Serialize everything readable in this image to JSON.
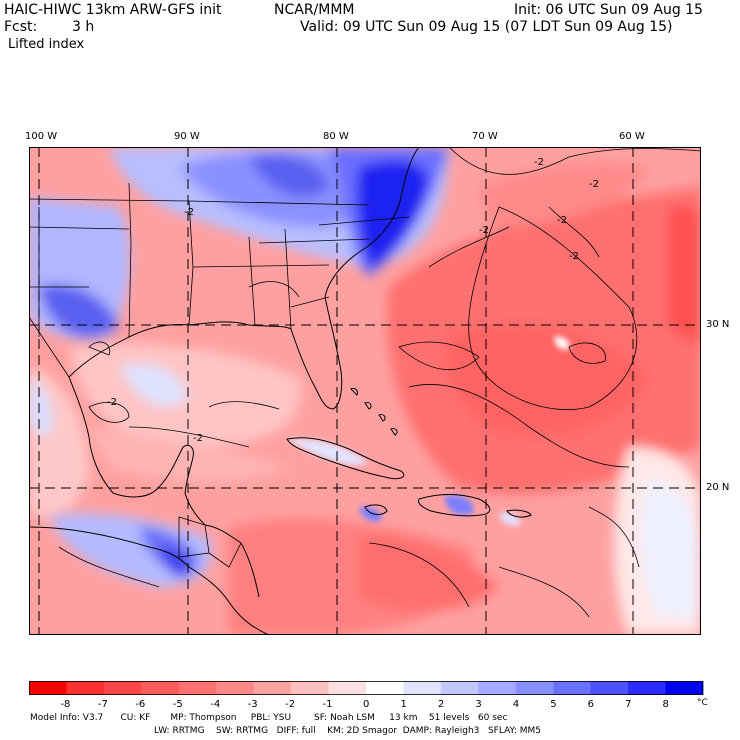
{
  "header": {
    "model_title": "HAIC-HIWC 13km ARW-GFS init",
    "org": "NCAR/MMM",
    "init": "Init: 06 UTC Sun 09 Aug 15",
    "fcst_label": "Fcst:",
    "fcst_value": "3 h",
    "valid": "Valid: 09 UTC Sun 09 Aug 15 (07 LDT Sun 09 Aug 15)",
    "field": "Lifted index"
  },
  "map": {
    "lon_labels": [
      "100 W",
      "90 W",
      "80 W",
      "70 W",
      "60 W"
    ],
    "lat_labels": [
      "30 N",
      "20 N"
    ],
    "contour_label": "-2"
  },
  "colorbar": {
    "ticks": [
      "-8",
      "-7",
      "-6",
      "-5",
      "-4",
      "-3",
      "-2",
      "-1",
      "0",
      "1",
      "2",
      "3",
      "4",
      "5",
      "6",
      "7",
      "8"
    ],
    "unit": "°C",
    "colors": [
      "#ff0000",
      "#ff3030",
      "#ff4545",
      "#ff5a5a",
      "#ff7070",
      "#ff8888",
      "#ffa2a2",
      "#ffc0c0",
      "#ffe0e0",
      "#ffffff",
      "#e0e4ff",
      "#c4c8ff",
      "#a4aaff",
      "#8890ff",
      "#6a70ff",
      "#4c50ff",
      "#2a2cff",
      "#0000f0"
    ]
  },
  "footer": {
    "line1": "Model Info: V3.7      CU: KF       MP: Thompson     PBL: YSU        SF: Noah LSM     13 km    51 levels   60 sec",
    "line2": "LW: RRTMG    SW: RRTMG   DIFF: full    KM: 2D Smagor  DAMP: Rayleigh3   SFLAY: MM5"
  }
}
